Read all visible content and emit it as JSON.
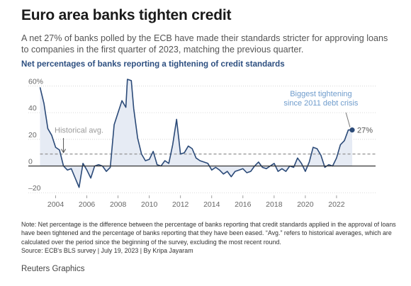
{
  "header": {
    "title": "Euro area banks tighten credit",
    "subtitle": "A net 27% of banks polled by the ECB have made their standards stricter for approving loans to companies in the first quarter of 2023, matching the previous quarter.",
    "chart_heading": "Net percentages of banks reporting a tightening of credit standards"
  },
  "colors": {
    "line": "#2b4a78",
    "area": "#e6ebf4",
    "average": "#999999",
    "annotation_blue": "#6f9ccc"
  },
  "chart_data": {
    "type": "area",
    "title": "Net percentages of banks reporting a tightening of credit standards",
    "xlim": [
      2002.25,
      2024.5
    ],
    "ylim": [
      -22,
      65
    ],
    "x_ticks": [
      2004,
      2006,
      2008,
      2010,
      2012,
      2014,
      2016,
      2018,
      2020,
      2022
    ],
    "x_tick_labels": [
      "2004",
      "2006",
      "2008",
      "2010",
      "2012",
      "2014",
      "2016",
      "2018",
      "2020",
      "2022"
    ],
    "y_ticks": [
      60,
      40,
      20,
      0,
      -20
    ],
    "y_tick_labels": [
      "60%",
      "40",
      "20",
      "0",
      "–20"
    ],
    "grid": "horizontal dotted",
    "series": [
      {
        "values": [
          {
            "x": 2003.0,
            "y": 59
          },
          {
            "x": 2003.25,
            "y": 47
          },
          {
            "x": 2003.5,
            "y": 28
          },
          {
            "x": 2003.75,
            "y": 23
          },
          {
            "x": 2004.0,
            "y": 14
          },
          {
            "x": 2004.25,
            "y": 12
          },
          {
            "x": 2004.5,
            "y": 0
          },
          {
            "x": 2004.75,
            "y": -3
          },
          {
            "x": 2005.0,
            "y": -2
          },
          {
            "x": 2005.25,
            "y": -9
          },
          {
            "x": 2005.5,
            "y": -16
          },
          {
            "x": 2005.75,
            "y": 2
          },
          {
            "x": 2006.0,
            "y": -3
          },
          {
            "x": 2006.25,
            "y": -9
          },
          {
            "x": 2006.5,
            "y": 0
          },
          {
            "x": 2006.75,
            "y": 1
          },
          {
            "x": 2007.0,
            "y": 0
          },
          {
            "x": 2007.25,
            "y": -4
          },
          {
            "x": 2007.5,
            "y": -1
          },
          {
            "x": 2007.75,
            "y": 31
          },
          {
            "x": 2008.0,
            "y": 40
          },
          {
            "x": 2008.25,
            "y": 49
          },
          {
            "x": 2008.5,
            "y": 44
          },
          {
            "x": 2008.6,
            "y": 65
          },
          {
            "x": 2008.85,
            "y": 64
          },
          {
            "x": 2009.0,
            "y": 43
          },
          {
            "x": 2009.25,
            "y": 21
          },
          {
            "x": 2009.5,
            "y": 9
          },
          {
            "x": 2009.75,
            "y": 4
          },
          {
            "x": 2010.0,
            "y": 5
          },
          {
            "x": 2010.25,
            "y": 11
          },
          {
            "x": 2010.5,
            "y": 1
          },
          {
            "x": 2010.75,
            "y": 0
          },
          {
            "x": 2011.0,
            "y": 4
          },
          {
            "x": 2011.25,
            "y": 2
          },
          {
            "x": 2011.5,
            "y": 16
          },
          {
            "x": 2011.75,
            "y": 35
          },
          {
            "x": 2012.0,
            "y": 9
          },
          {
            "x": 2012.25,
            "y": 10
          },
          {
            "x": 2012.5,
            "y": 15
          },
          {
            "x": 2012.75,
            "y": 13
          },
          {
            "x": 2013.0,
            "y": 6
          },
          {
            "x": 2013.25,
            "y": 4
          },
          {
            "x": 2013.5,
            "y": 3
          },
          {
            "x": 2013.75,
            "y": 2
          },
          {
            "x": 2014.0,
            "y": -3
          },
          {
            "x": 2014.25,
            "y": -1
          },
          {
            "x": 2014.5,
            "y": -3
          },
          {
            "x": 2014.75,
            "y": -6
          },
          {
            "x": 2015.0,
            "y": -4
          },
          {
            "x": 2015.25,
            "y": -8
          },
          {
            "x": 2015.5,
            "y": -4
          },
          {
            "x": 2015.75,
            "y": -3
          },
          {
            "x": 2016.0,
            "y": -2
          },
          {
            "x": 2016.25,
            "y": -5
          },
          {
            "x": 2016.5,
            "y": -4
          },
          {
            "x": 2016.75,
            "y": 0
          },
          {
            "x": 2017.0,
            "y": 3
          },
          {
            "x": 2017.25,
            "y": -1
          },
          {
            "x": 2017.5,
            "y": -2
          },
          {
            "x": 2017.75,
            "y": 0
          },
          {
            "x": 2018.0,
            "y": 2
          },
          {
            "x": 2018.25,
            "y": -4
          },
          {
            "x": 2018.5,
            "y": -2
          },
          {
            "x": 2018.75,
            "y": -4
          },
          {
            "x": 2019.0,
            "y": 0
          },
          {
            "x": 2019.25,
            "y": -1
          },
          {
            "x": 2019.5,
            "y": 6
          },
          {
            "x": 2019.75,
            "y": 2
          },
          {
            "x": 2020.0,
            "y": -4
          },
          {
            "x": 2020.25,
            "y": 3
          },
          {
            "x": 2020.5,
            "y": 14
          },
          {
            "x": 2020.75,
            "y": 13
          },
          {
            "x": 2021.0,
            "y": 8
          },
          {
            "x": 2021.25,
            "y": -1
          },
          {
            "x": 2021.5,
            "y": 1
          },
          {
            "x": 2021.75,
            "y": 0
          },
          {
            "x": 2022.0,
            "y": 6
          },
          {
            "x": 2022.25,
            "y": 16
          },
          {
            "x": 2022.5,
            "y": 19
          },
          {
            "x": 2022.75,
            "y": 27
          },
          {
            "x": 2023.0,
            "y": 27
          }
        ]
      }
    ],
    "historical_average": 9,
    "annotations": {
      "historical_avg": "Historical avg.",
      "biggest_tightening": [
        "Biggest tightening",
        "since 2011 debt crisis"
      ],
      "end_value": "27%"
    }
  },
  "footer": {
    "note": "Note: Net percentage is the difference between the percentage of banks reporting that credit standards applied in the approval of loans have been tightened and the percentage of banks reporting that they have been eased. “Avg.” refers to historical averages, which are calculated over the period since the beginning of the survey, excluding the most recent round.",
    "source": "Source: ECB's BLS survey | July 19, 2023 | By Kripa Jayaram",
    "brand": "Reuters Graphics"
  }
}
